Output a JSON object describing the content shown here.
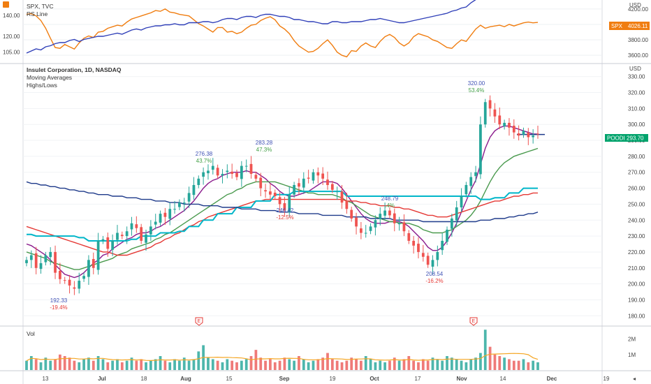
{
  "chart_data": [
    {
      "type": "line",
      "legend": [
        "SPX, TVC",
        "RS Line"
      ],
      "right_axis_label": "USD",
      "left_ticks": [
        "140.00",
        "120.00",
        "105.00"
      ],
      "right_ticks": [
        "4200.00",
        "4000.00",
        "3800.00",
        "3600.00"
      ],
      "ylim_price": [
        3520,
        4280
      ],
      "ylim_rs": [
        96,
        152
      ],
      "series": [
        {
          "name": "SPX, TVC",
          "color": "#f07d10",
          "values": [
            4130,
            4140,
            4110,
            4050,
            3950,
            3820,
            3700,
            3690,
            3740,
            3710,
            3680,
            3760,
            3820,
            3850,
            3830,
            3900,
            3910,
            3950,
            3970,
            3990,
            3980,
            4030,
            4070,
            4090,
            4110,
            4130,
            4150,
            4180,
            4170,
            4200,
            4160,
            4150,
            4130,
            4120,
            4110,
            4060,
            4010,
            3980,
            3940,
            3900,
            3960,
            3960,
            3900,
            3910,
            3880,
            3900,
            3950,
            3990,
            4000,
            4050,
            4080,
            4100,
            4060,
            3980,
            3940,
            3880,
            3790,
            3720,
            3680,
            3640,
            3650,
            3690,
            3750,
            3800,
            3730,
            3640,
            3600,
            3580,
            3660,
            3650,
            3720,
            3760,
            3720,
            3700,
            3780,
            3840,
            3870,
            3830,
            3760,
            3720,
            3760,
            3840,
            3880,
            3860,
            3840,
            3800,
            3780,
            3740,
            3700,
            3690,
            3750,
            3800,
            3780,
            3860,
            3940,
            3990,
            3950,
            3970,
            3980,
            3990,
            3970,
            4000,
            3980,
            4000,
            4020,
            4030,
            4020,
            4026
          ]
        },
        {
          "name": "RS Line",
          "color": "#2f3fb8",
          "values": [
            104,
            106,
            108,
            107,
            110,
            111,
            113,
            114,
            114,
            116,
            117,
            115,
            117,
            118,
            119,
            120,
            120,
            121,
            122,
            123,
            122,
            124,
            126,
            127,
            126,
            128,
            129,
            130,
            130,
            131,
            131,
            132,
            131,
            131,
            133,
            133,
            133,
            134,
            134,
            133,
            134,
            136,
            137,
            137,
            136,
            138,
            139,
            139,
            138,
            140,
            141,
            141,
            140,
            139,
            139,
            138,
            136,
            136,
            135,
            134,
            134,
            133,
            132,
            132,
            134,
            134,
            133,
            133,
            134,
            134,
            134,
            135,
            136,
            136,
            137,
            136,
            135,
            134,
            133,
            133,
            134,
            135,
            136,
            137,
            138,
            139,
            140,
            141,
            142,
            144,
            145,
            147,
            148,
            152,
            155,
            175,
            172,
            170,
            170,
            168,
            166,
            165,
            164,
            163,
            162,
            163,
            164,
            164
          ]
        }
      ]
    },
    {
      "type": "candlestick",
      "title": "Insulet Corporation, 1D, NASDAQ",
      "legend": [
        "Moving Averages",
        "Highs/Lows"
      ],
      "right_axis_label": "USD",
      "ylim": [
        174,
        336
      ],
      "y_ticks": [
        330,
        320,
        310,
        300,
        290,
        280,
        270,
        260,
        250,
        240,
        230,
        220,
        210,
        200,
        190,
        180
      ],
      "x_ticks": [
        "13",
        "Jul",
        "18",
        "Aug",
        "15",
        "Sep",
        "19",
        "Oct",
        "17",
        "Nov",
        "14",
        "Dec",
        "19"
      ],
      "last_price_label": "POODD",
      "last_price": "293.70",
      "spx_price_label": "SPX",
      "spx_price": "4026.11",
      "closes": [
        215,
        218,
        210,
        213,
        218,
        220,
        207,
        203,
        202,
        199,
        197,
        202,
        205,
        215,
        210,
        227,
        228,
        222,
        227,
        232,
        230,
        233,
        238,
        235,
        227,
        231,
        236,
        239,
        244,
        242,
        247,
        247,
        251,
        251,
        257,
        262,
        266,
        270,
        271,
        274,
        268,
        269,
        271,
        269,
        267,
        274,
        274,
        269,
        266,
        260,
        258,
        256,
        255,
        250,
        246,
        256,
        262,
        261,
        266,
        266,
        270,
        268,
        266,
        262,
        259,
        258,
        251,
        247,
        241,
        236,
        232,
        232,
        236,
        240,
        244,
        246,
        243,
        238,
        238,
        233,
        227,
        224,
        220,
        217,
        212,
        215,
        220,
        227,
        234,
        241,
        248,
        255,
        262,
        267,
        270,
        300,
        314,
        310,
        305,
        300,
        301,
        298,
        295,
        293,
        296,
        292,
        293,
        294
      ],
      "annotations": [
        {
          "text": "192.33",
          "sub": "-19.4%"
        },
        {
          "text": "276.38",
          "sub": "43.7%"
        },
        {
          "text": "283.28",
          "sub": "47.3%"
        },
        {
          "text": "246.42",
          "sub": "-12.5%"
        },
        {
          "text": "248.79",
          "sub": ".4%"
        },
        {
          "text": "208.54",
          "sub": "-16.2%"
        },
        {
          "text": "320.00",
          "sub": "53.4%"
        }
      ],
      "earnings_marker": "E",
      "series": [
        {
          "name": "MA 10",
          "color": "#8a1a8c",
          "values": [
            225,
            224,
            222,
            220,
            218,
            215,
            212,
            209,
            206,
            205,
            204,
            205,
            207,
            210,
            213,
            215,
            218,
            219,
            222,
            224,
            226,
            228,
            229,
            231,
            232,
            232,
            233,
            235,
            236,
            238,
            240,
            242,
            244,
            246,
            249,
            252,
            256,
            260,
            263,
            265,
            266,
            268,
            269,
            270,
            270,
            270,
            271,
            270,
            270,
            268,
            266,
            263,
            261,
            258,
            256,
            255,
            255,
            256,
            257,
            258,
            260,
            262,
            264,
            264,
            264,
            263,
            260,
            256,
            252,
            248,
            244,
            241,
            239,
            238,
            238,
            238,
            239,
            239,
            239,
            238,
            236,
            233,
            230,
            227,
            223,
            221,
            221,
            223,
            227,
            232,
            238,
            245,
            252,
            259,
            265,
            275,
            285,
            292,
            296,
            298,
            299,
            299,
            298,
            297,
            296,
            295,
            294,
            294
          ]
        },
        {
          "name": "MA 21",
          "color": "#4a9a4e",
          "values": [
            220,
            219,
            218,
            217,
            216,
            214,
            213,
            212,
            211,
            210,
            209,
            209,
            210,
            211,
            212,
            213,
            214,
            215,
            216,
            218,
            219,
            220,
            222,
            223,
            224,
            225,
            226,
            228,
            229,
            231,
            232,
            234,
            236,
            238,
            240,
            242,
            244,
            246,
            248,
            250,
            252,
            254,
            256,
            257,
            259,
            260,
            262,
            263,
            264,
            264,
            264,
            264,
            264,
            263,
            262,
            261,
            260,
            259,
            258,
            257,
            257,
            256,
            256,
            256,
            256,
            255,
            254,
            252,
            251,
            249,
            247,
            245,
            243,
            242,
            241,
            240,
            239,
            239,
            238,
            238,
            238,
            237,
            236,
            234,
            233,
            232,
            232,
            232,
            233,
            234,
            236,
            238,
            240,
            243,
            247,
            252,
            258,
            264,
            269,
            273,
            276,
            278,
            280,
            281,
            282,
            283,
            284,
            285
          ]
        },
        {
          "name": "MA 50",
          "color": "#e53935",
          "values": [
            236,
            235,
            234,
            233,
            232,
            231,
            230,
            229,
            228,
            227,
            226,
            225,
            224,
            223,
            222,
            221,
            220,
            220,
            219,
            218,
            218,
            218,
            219,
            220,
            221,
            222,
            223,
            225,
            226,
            228,
            229,
            231,
            232,
            234,
            236,
            237,
            239,
            240,
            242,
            243,
            244,
            245,
            246,
            247,
            248,
            249,
            250,
            251,
            252,
            252,
            253,
            253,
            253,
            253,
            253,
            253,
            253,
            253,
            253,
            253,
            253,
            253,
            253,
            253,
            253,
            253,
            253,
            252,
            252,
            252,
            251,
            251,
            250,
            250,
            249,
            249,
            249,
            248,
            248,
            247,
            247,
            246,
            245,
            244,
            243,
            243,
            242,
            242,
            242,
            243,
            244,
            245,
            246,
            247,
            248,
            249,
            250,
            251,
            252,
            252,
            253,
            254,
            255,
            255,
            256,
            256,
            257,
            257
          ]
        },
        {
          "name": "MA 150",
          "color": "#00b6c9",
          "values": [
            231,
            231,
            230,
            230,
            230,
            230,
            230,
            230,
            230,
            230,
            230,
            229,
            229,
            227,
            227,
            227,
            227,
            227,
            227,
            227,
            227,
            227,
            228,
            228,
            230,
            230,
            230,
            230,
            232,
            232,
            232,
            232,
            233,
            233,
            236,
            236,
            236,
            240,
            240,
            240,
            244,
            244,
            244,
            244,
            248,
            248,
            248,
            248,
            252,
            252,
            252,
            252,
            256,
            256,
            256,
            256,
            258,
            258,
            258,
            258,
            258,
            258,
            258,
            258,
            258,
            258,
            258,
            255,
            255,
            255,
            255,
            255,
            255,
            255,
            255,
            255,
            255,
            255,
            255,
            255,
            255,
            255,
            255,
            255,
            255,
            255,
            255,
            255,
            255,
            255,
            255,
            255,
            255,
            255,
            255,
            253,
            253,
            253,
            254,
            254,
            254,
            257,
            257,
            257,
            260,
            260,
            260,
            260
          ]
        },
        {
          "name": "MA 200",
          "color": "#1e3a8a",
          "values": [
            264,
            263,
            263,
            262,
            262,
            261,
            261,
            260,
            260,
            259,
            259,
            258,
            258,
            257,
            257,
            256,
            256,
            256,
            255,
            255,
            255,
            254,
            254,
            254,
            253,
            253,
            253,
            252,
            252,
            252,
            251,
            251,
            251,
            250,
            250,
            250,
            250,
            249,
            249,
            249,
            249,
            248,
            248,
            248,
            248,
            247,
            247,
            247,
            247,
            246,
            246,
            246,
            246,
            245,
            245,
            245,
            245,
            244,
            244,
            244,
            244,
            244,
            243,
            243,
            243,
            243,
            243,
            242,
            242,
            242,
            242,
            242,
            241,
            241,
            241,
            241,
            241,
            240,
            240,
            240,
            240,
            240,
            240,
            239,
            239,
            239,
            239,
            239,
            239,
            239,
            239,
            239,
            239,
            239,
            239,
            240,
            240,
            240,
            241,
            241,
            241,
            242,
            242,
            243,
            243,
            244,
            244,
            245
          ]
        }
      ]
    },
    {
      "type": "bar",
      "title": "Vol",
      "y_ticks": [
        "2M",
        "1M"
      ],
      "ylim": [
        0,
        2.7
      ],
      "values": [
        0.6,
        0.9,
        0.7,
        0.5,
        0.8,
        0.6,
        0.7,
        1.0,
        0.9,
        0.8,
        0.6,
        0.5,
        0.7,
        0.8,
        0.6,
        0.9,
        0.7,
        0.5,
        0.6,
        0.7,
        0.5,
        0.6,
        0.8,
        0.6,
        0.7,
        0.5,
        0.6,
        0.7,
        0.9,
        0.6,
        0.5,
        0.7,
        0.6,
        0.8,
        0.6,
        0.7,
        1.2,
        1.6,
        0.8,
        0.7,
        0.6,
        0.5,
        0.7,
        0.6,
        0.5,
        0.6,
        0.7,
        0.9,
        1.3,
        0.8,
        0.6,
        0.7,
        0.5,
        0.6,
        0.8,
        0.7,
        0.6,
        0.9,
        0.7,
        0.5,
        0.6,
        0.7,
        0.8,
        1.1,
        0.7,
        0.6,
        0.5,
        0.6,
        0.8,
        0.7,
        0.6,
        0.9,
        0.7,
        0.5,
        0.6,
        0.5,
        0.6,
        0.8,
        0.6,
        0.7,
        0.9,
        0.6,
        0.5,
        0.7,
        0.6,
        0.8,
        0.7,
        0.6,
        0.9,
        0.8,
        0.7,
        0.6,
        0.5,
        0.7,
        0.8,
        1.1,
        2.6,
        1.5,
        1.0,
        0.9,
        0.8,
        0.7,
        0.6,
        0.6,
        0.7,
        0.5,
        0.6,
        0.5
      ]
    }
  ],
  "ui": {
    "nav_arrow": "◂"
  }
}
